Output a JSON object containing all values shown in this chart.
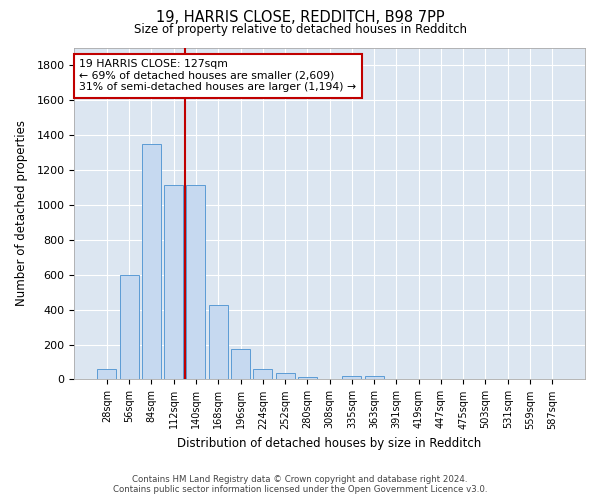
{
  "title": "19, HARRIS CLOSE, REDDITCH, B98 7PP",
  "subtitle": "Size of property relative to detached houses in Redditch",
  "xlabel": "Distribution of detached houses by size in Redditch",
  "ylabel": "Number of detached properties",
  "footer_line1": "Contains HM Land Registry data © Crown copyright and database right 2024.",
  "footer_line2": "Contains public sector information licensed under the Open Government Licence v3.0.",
  "bar_labels": [
    "28sqm",
    "56sqm",
    "84sqm",
    "112sqm",
    "140sqm",
    "168sqm",
    "196sqm",
    "224sqm",
    "252sqm",
    "280sqm",
    "308sqm",
    "335sqm",
    "363sqm",
    "391sqm",
    "419sqm",
    "447sqm",
    "475sqm",
    "503sqm",
    "531sqm",
    "559sqm",
    "587sqm"
  ],
  "bar_values": [
    57,
    600,
    1350,
    1115,
    1115,
    425,
    175,
    60,
    37,
    12,
    0,
    18,
    18,
    0,
    0,
    0,
    0,
    0,
    0,
    0,
    0
  ],
  "bar_color": "#c6d9f0",
  "bar_edge_color": "#5b9bd5",
  "vline_x_index": 3.5,
  "vline_color": "#c00000",
  "annotation_line1": "19 HARRIS CLOSE: 127sqm",
  "annotation_line2": "← 69% of detached houses are smaller (2,609)",
  "annotation_line3": "31% of semi-detached houses are larger (1,194) →",
  "annotation_box_color": "white",
  "annotation_box_edgecolor": "#c00000",
  "ylim": [
    0,
    1900
  ],
  "yticks": [
    0,
    200,
    400,
    600,
    800,
    1000,
    1200,
    1400,
    1600,
    1800
  ],
  "background_color": "#ffffff",
  "plot_bg_color": "#dce6f1",
  "grid_color": "#ffffff",
  "figsize": [
    6.0,
    5.0
  ],
  "dpi": 100
}
